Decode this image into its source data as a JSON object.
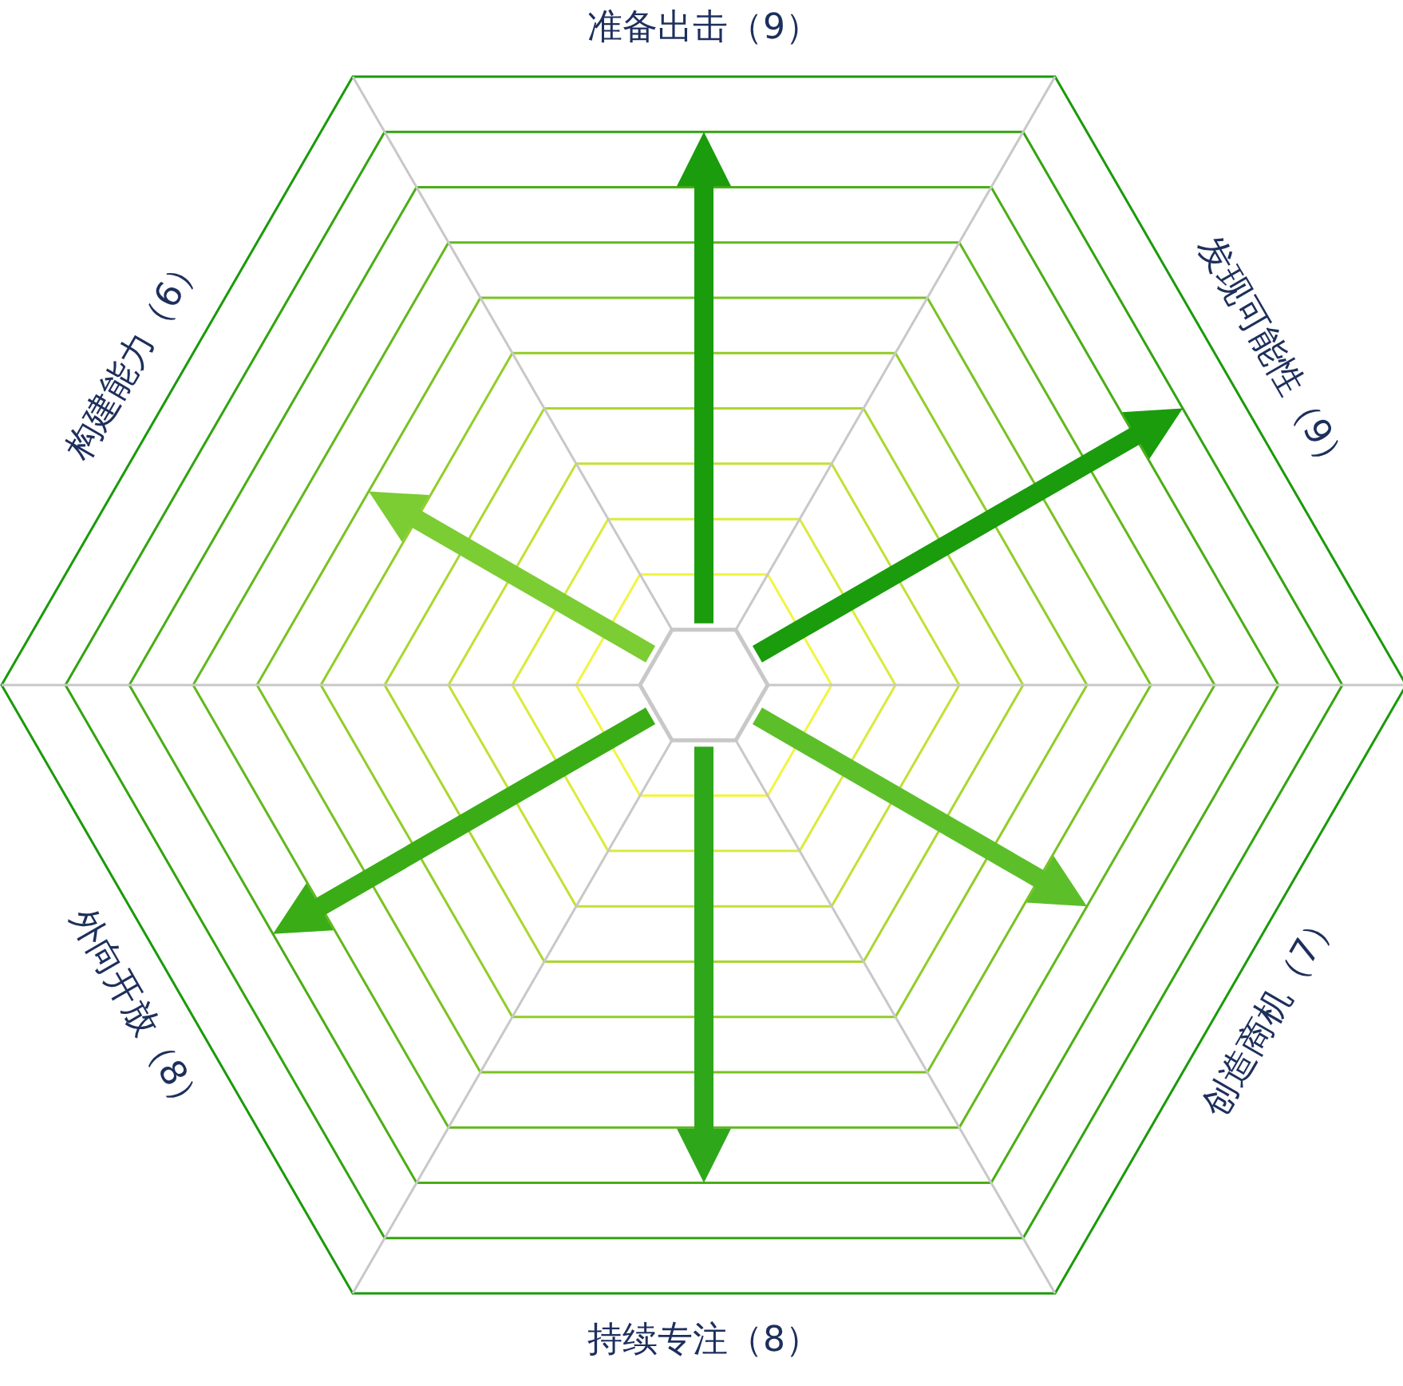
{
  "chart_data": {
    "type": "other",
    "categories": [
      "准备出击",
      "发现可能性",
      "创造商机",
      "持续专注",
      "外向开放",
      "构建能力"
    ],
    "values": [
      9,
      9,
      7,
      8,
      8,
      6
    ],
    "value_labels": [
      "（9）",
      "（9）",
      "（7）",
      "（8）",
      "（8）",
      "（6）"
    ],
    "colors": [
      "#1a9c0c",
      "#1a9c0c",
      "#5cbf2a",
      "#2ea81a",
      "#3aad16",
      "#7ccc34"
    ]
  }
}
